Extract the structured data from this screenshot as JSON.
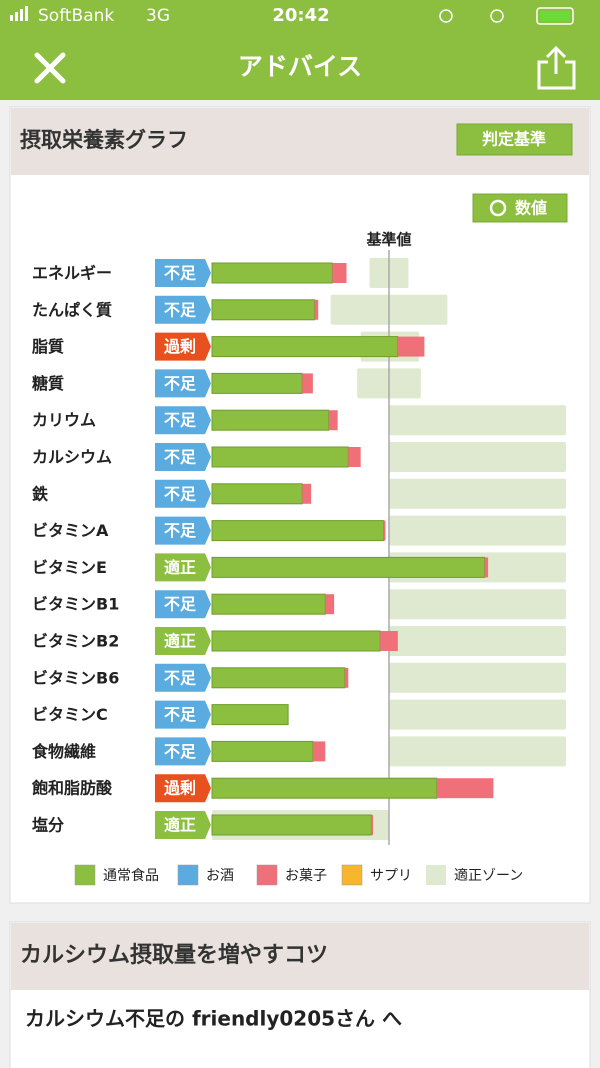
{
  "status_bar": {
    "carrier": "SoftBank",
    "network": "3G",
    "time": "20:42"
  },
  "nav": {
    "title": "アドバイス"
  },
  "graph_card": {
    "title": "摂取栄養素グラフ",
    "criteria_button": "判定基準",
    "values_button": "数値"
  },
  "chart_data": {
    "type": "bar",
    "orientation": "horizontal",
    "stacked": true,
    "categories": [
      "エネルギー",
      "たんぱく質",
      "脂質",
      "糖質",
      "カリウム",
      "カルシウム",
      "鉄",
      "ビタミンA",
      "ビタミンE",
      "ビタミンB1",
      "ビタミンB2",
      "ビタミンB6",
      "ビタミンC",
      "食物繊維",
      "飽和脂肪酸",
      "塩分"
    ],
    "statuses": [
      "不足",
      "不足",
      "過剰",
      "不足",
      "不足",
      "不足",
      "不足",
      "不足",
      "適正",
      "不足",
      "適正",
      "不足",
      "不足",
      "不足",
      "過剰",
      "適正"
    ],
    "status_colors": {
      "不足": "#5aabdf",
      "過剰": "#e8501e",
      "適正": "#8cbf3f"
    },
    "series": [
      {
        "name": "通常食品",
        "color": "#8cbf3f",
        "values": [
          68,
          58,
          105,
          51,
          66,
          77,
          51,
          97,
          154,
          64,
          95,
          75,
          43,
          57,
          127,
          90
        ]
      },
      {
        "name": "お酒",
        "color": "#5aabdf",
        "values": [
          0,
          0,
          0,
          0,
          0,
          0,
          0,
          0,
          0,
          0,
          0,
          0,
          0,
          0,
          0,
          0
        ]
      },
      {
        "name": "お菓子",
        "color": "#f0707a",
        "values": [
          8,
          2,
          15,
          6,
          5,
          7,
          5,
          1,
          2,
          5,
          10,
          2,
          0,
          7,
          32,
          1
        ]
      },
      {
        "name": "サプリ",
        "color": "#f8b62d",
        "values": [
          0,
          0,
          0,
          0,
          0,
          0,
          0,
          0,
          0,
          0,
          0,
          0,
          0,
          0,
          0,
          0
        ]
      }
    ],
    "zone": {
      "name": "適正ゾーン",
      "color": "#dfe9d0",
      "ranges": [
        [
          89,
          111
        ],
        [
          67,
          133
        ],
        [
          84,
          117
        ],
        [
          82,
          118
        ],
        [
          100,
          200
        ],
        [
          100,
          200
        ],
        [
          100,
          200
        ],
        [
          100,
          200
        ],
        [
          100,
          200
        ],
        [
          100,
          200
        ],
        [
          100,
          200
        ],
        [
          100,
          200
        ],
        [
          100,
          200
        ],
        [
          100,
          200
        ],
        null,
        [
          0,
          100
        ]
      ]
    },
    "reference": {
      "label": "基準値",
      "value": 100
    },
    "xlim": [
      0,
      200
    ]
  },
  "tips_card": {
    "title": "カルシウム摂取量を増やすコツ",
    "message": "カルシウム不足の friendly0205さん へ"
  }
}
